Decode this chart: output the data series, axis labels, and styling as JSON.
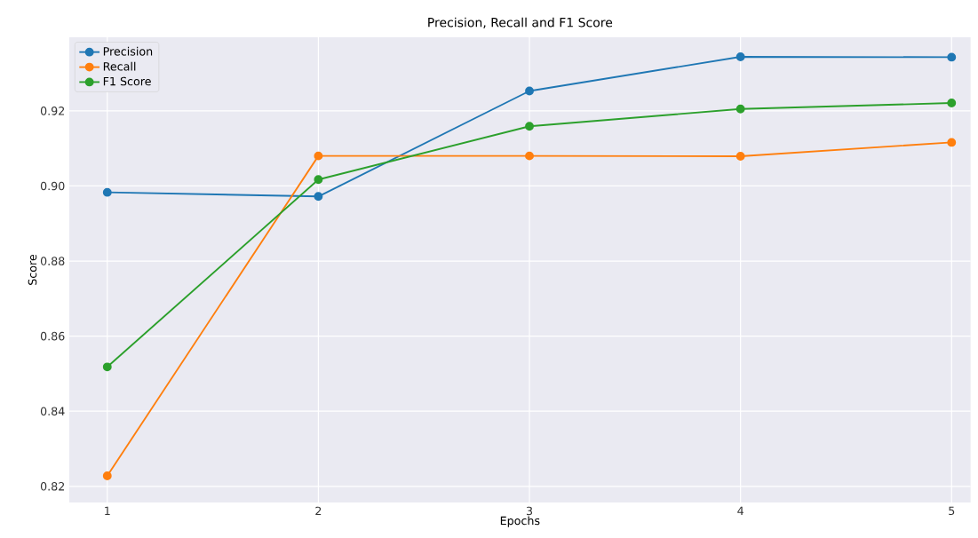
{
  "chart_data": {
    "type": "line",
    "title": "Precision, Recall and F1 Score",
    "xlabel": "Epochs",
    "ylabel": "Score",
    "x": [
      1,
      2,
      3,
      4,
      5
    ],
    "series": [
      {
        "name": "Precision",
        "color": "#1f77b4",
        "values": [
          0.8983,
          0.8972,
          0.9253,
          0.9344,
          0.9343
        ]
      },
      {
        "name": "Recall",
        "color": "#ff7f0e",
        "values": [
          0.8228,
          0.908,
          0.908,
          0.9079,
          0.9116
        ]
      },
      {
        "name": "F1 Score",
        "color": "#2ca02c",
        "values": [
          0.8518,
          0.9017,
          0.9159,
          0.9205,
          0.9221
        ]
      }
    ],
    "xlim": [
      0.82,
      5.09
    ],
    "ylim": [
      0.8157,
      0.9396
    ],
    "xticks": [
      1,
      2,
      3,
      4,
      5
    ],
    "yticks": [
      0.82,
      0.84,
      0.86,
      0.88,
      {
        "value": 0.9,
        "label": "0.90"
      },
      0.92
    ],
    "grid": true,
    "legend": "top left",
    "marker": "circle",
    "line_style": "solid"
  }
}
